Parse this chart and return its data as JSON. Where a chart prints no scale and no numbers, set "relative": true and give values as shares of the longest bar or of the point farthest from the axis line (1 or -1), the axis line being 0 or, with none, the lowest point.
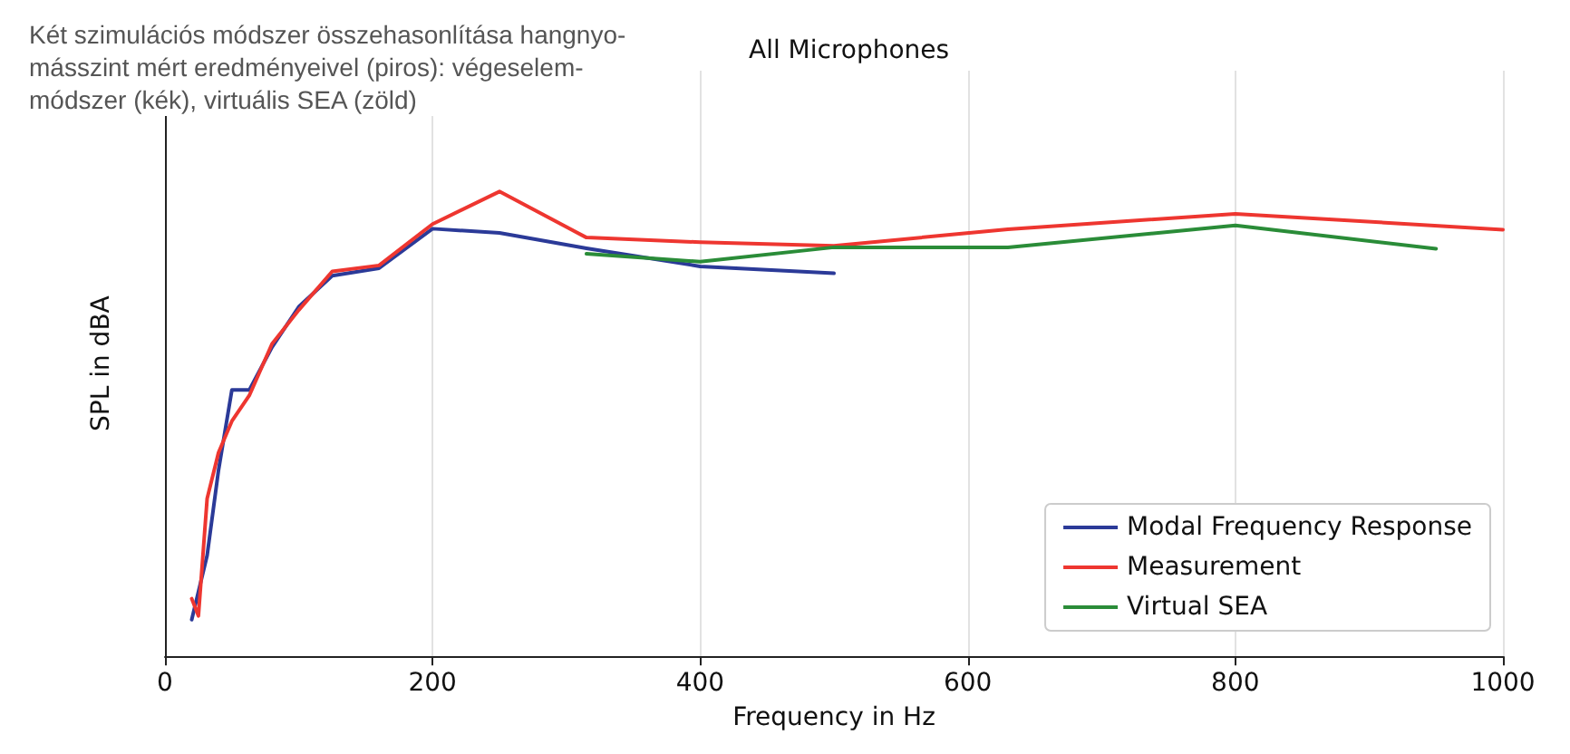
{
  "chart_data": {
    "type": "line",
    "title": "All Microphones",
    "xlabel": "Frequency in Hz",
    "ylabel": "SPL in dBA",
    "annotations": [
      "Két szimulációs módszer összehasonlítása hangnyo-\nmásszint mért eredményeivel (piros): végeselem-\nmódszer (kék), virtuális SEA (zöld)"
    ],
    "relative": true,
    "xlim": [
      0,
      1000
    ],
    "xticks": [
      0,
      200,
      400,
      600,
      800,
      1000
    ],
    "grid": "x",
    "legend": "bottom right",
    "tick_labels": "x",
    "marker": "none",
    "line_style": "solid",
    "series": [
      {
        "name": "Modal Frequency Response",
        "color": "#2b3a98",
        "x": [
          20,
          31.5,
          40,
          50,
          63,
          80,
          100,
          125,
          160,
          200,
          250,
          315,
          400,
          500
        ],
        "values": [
          0.079,
          0.217,
          0.4,
          0.573,
          0.573,
          0.665,
          0.752,
          0.819,
          0.835,
          0.92,
          0.911,
          0.878,
          0.839,
          0.824
        ]
      },
      {
        "name": "Measurement",
        "color": "#ee3630",
        "x": [
          20,
          25,
          31.5,
          40,
          50,
          63,
          80,
          100,
          125,
          160,
          200,
          250,
          315,
          400,
          500,
          630,
          800,
          1000
        ],
        "values": [
          0.124,
          0.087,
          0.339,
          0.438,
          0.506,
          0.561,
          0.672,
          0.745,
          0.828,
          0.841,
          0.93,
          1.0,
          0.901,
          0.891,
          0.883,
          0.919,
          0.952,
          0.918
        ]
      },
      {
        "name": "Virtual SEA",
        "color": "#2a8c38",
        "x": [
          315,
          400,
          500,
          630,
          800,
          950
        ],
        "values": [
          0.866,
          0.849,
          0.88,
          0.88,
          0.927,
          0.877
        ]
      }
    ]
  }
}
